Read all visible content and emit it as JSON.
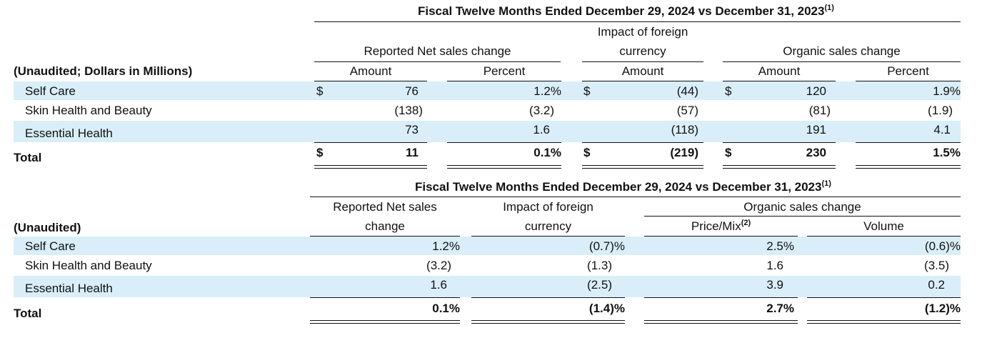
{
  "table1": {
    "title": "Fiscal Twelve Months Ended December 29, 2024 vs December 31, 2023",
    "title_note": "(1)",
    "row_header": "(Unaudited; Dollars in Millions)",
    "groups": {
      "reported": "Reported Net sales change",
      "fx_line1": "Impact of foreign",
      "fx_line2": "currency",
      "organic": "Organic sales change"
    },
    "cols": {
      "rep_amount": "Amount",
      "rep_percent": "Percent",
      "fx_amount": "Amount",
      "org_amount": "Amount",
      "org_percent": "Percent"
    },
    "currency_symbol": "$",
    "rows": [
      {
        "label": "Self Care",
        "rep_amount": "76",
        "rep_percent": "1.2%",
        "fx_amount": "(44)",
        "org_amount": "120",
        "org_percent": "1.9%"
      },
      {
        "label": "Skin Health and Beauty",
        "rep_amount": "(138)",
        "rep_percent": "(3.2)",
        "fx_amount": "(57)",
        "org_amount": "(81)",
        "org_percent": "(1.9)"
      },
      {
        "label": "Essential Health",
        "rep_amount": "73",
        "rep_percent": "1.6",
        "fx_amount": "(118)",
        "org_amount": "191",
        "org_percent": "4.1"
      }
    ],
    "total": {
      "label": "Total",
      "rep_amount": "11",
      "rep_percent": "0.1%",
      "fx_amount": "(219)",
      "org_amount": "230",
      "org_percent": "1.5%"
    }
  },
  "table2": {
    "title": "Fiscal Twelve Months Ended December 29, 2024 vs December 31, 2023",
    "title_note": "(1)",
    "row_header": "(Unaudited)",
    "groups": {
      "reported_line1": "Reported Net sales",
      "reported_line2": "change",
      "fx_line1": "Impact of foreign",
      "fx_line2": "currency",
      "organic": "Organic sales change"
    },
    "cols": {
      "price_mix": "Price/Mix",
      "price_mix_note": "(2)",
      "volume": "Volume"
    },
    "rows": [
      {
        "label": "Self Care",
        "reported": "1.2%",
        "fx": "(0.7)%",
        "price_mix": "2.5%",
        "volume": "(0.6)%"
      },
      {
        "label": "Skin Health and Beauty",
        "reported": "(3.2)",
        "fx": "(1.3)",
        "price_mix": "1.6",
        "volume": "(3.5)"
      },
      {
        "label": "Essential Health",
        "reported": "1.6",
        "fx": "(2.5)",
        "price_mix": "3.9",
        "volume": "0.2"
      }
    ],
    "total": {
      "label": "Total",
      "reported": "0.1%",
      "fx": "(1.4)%",
      "price_mix": "2.7%",
      "volume": "(1.2)%"
    }
  }
}
